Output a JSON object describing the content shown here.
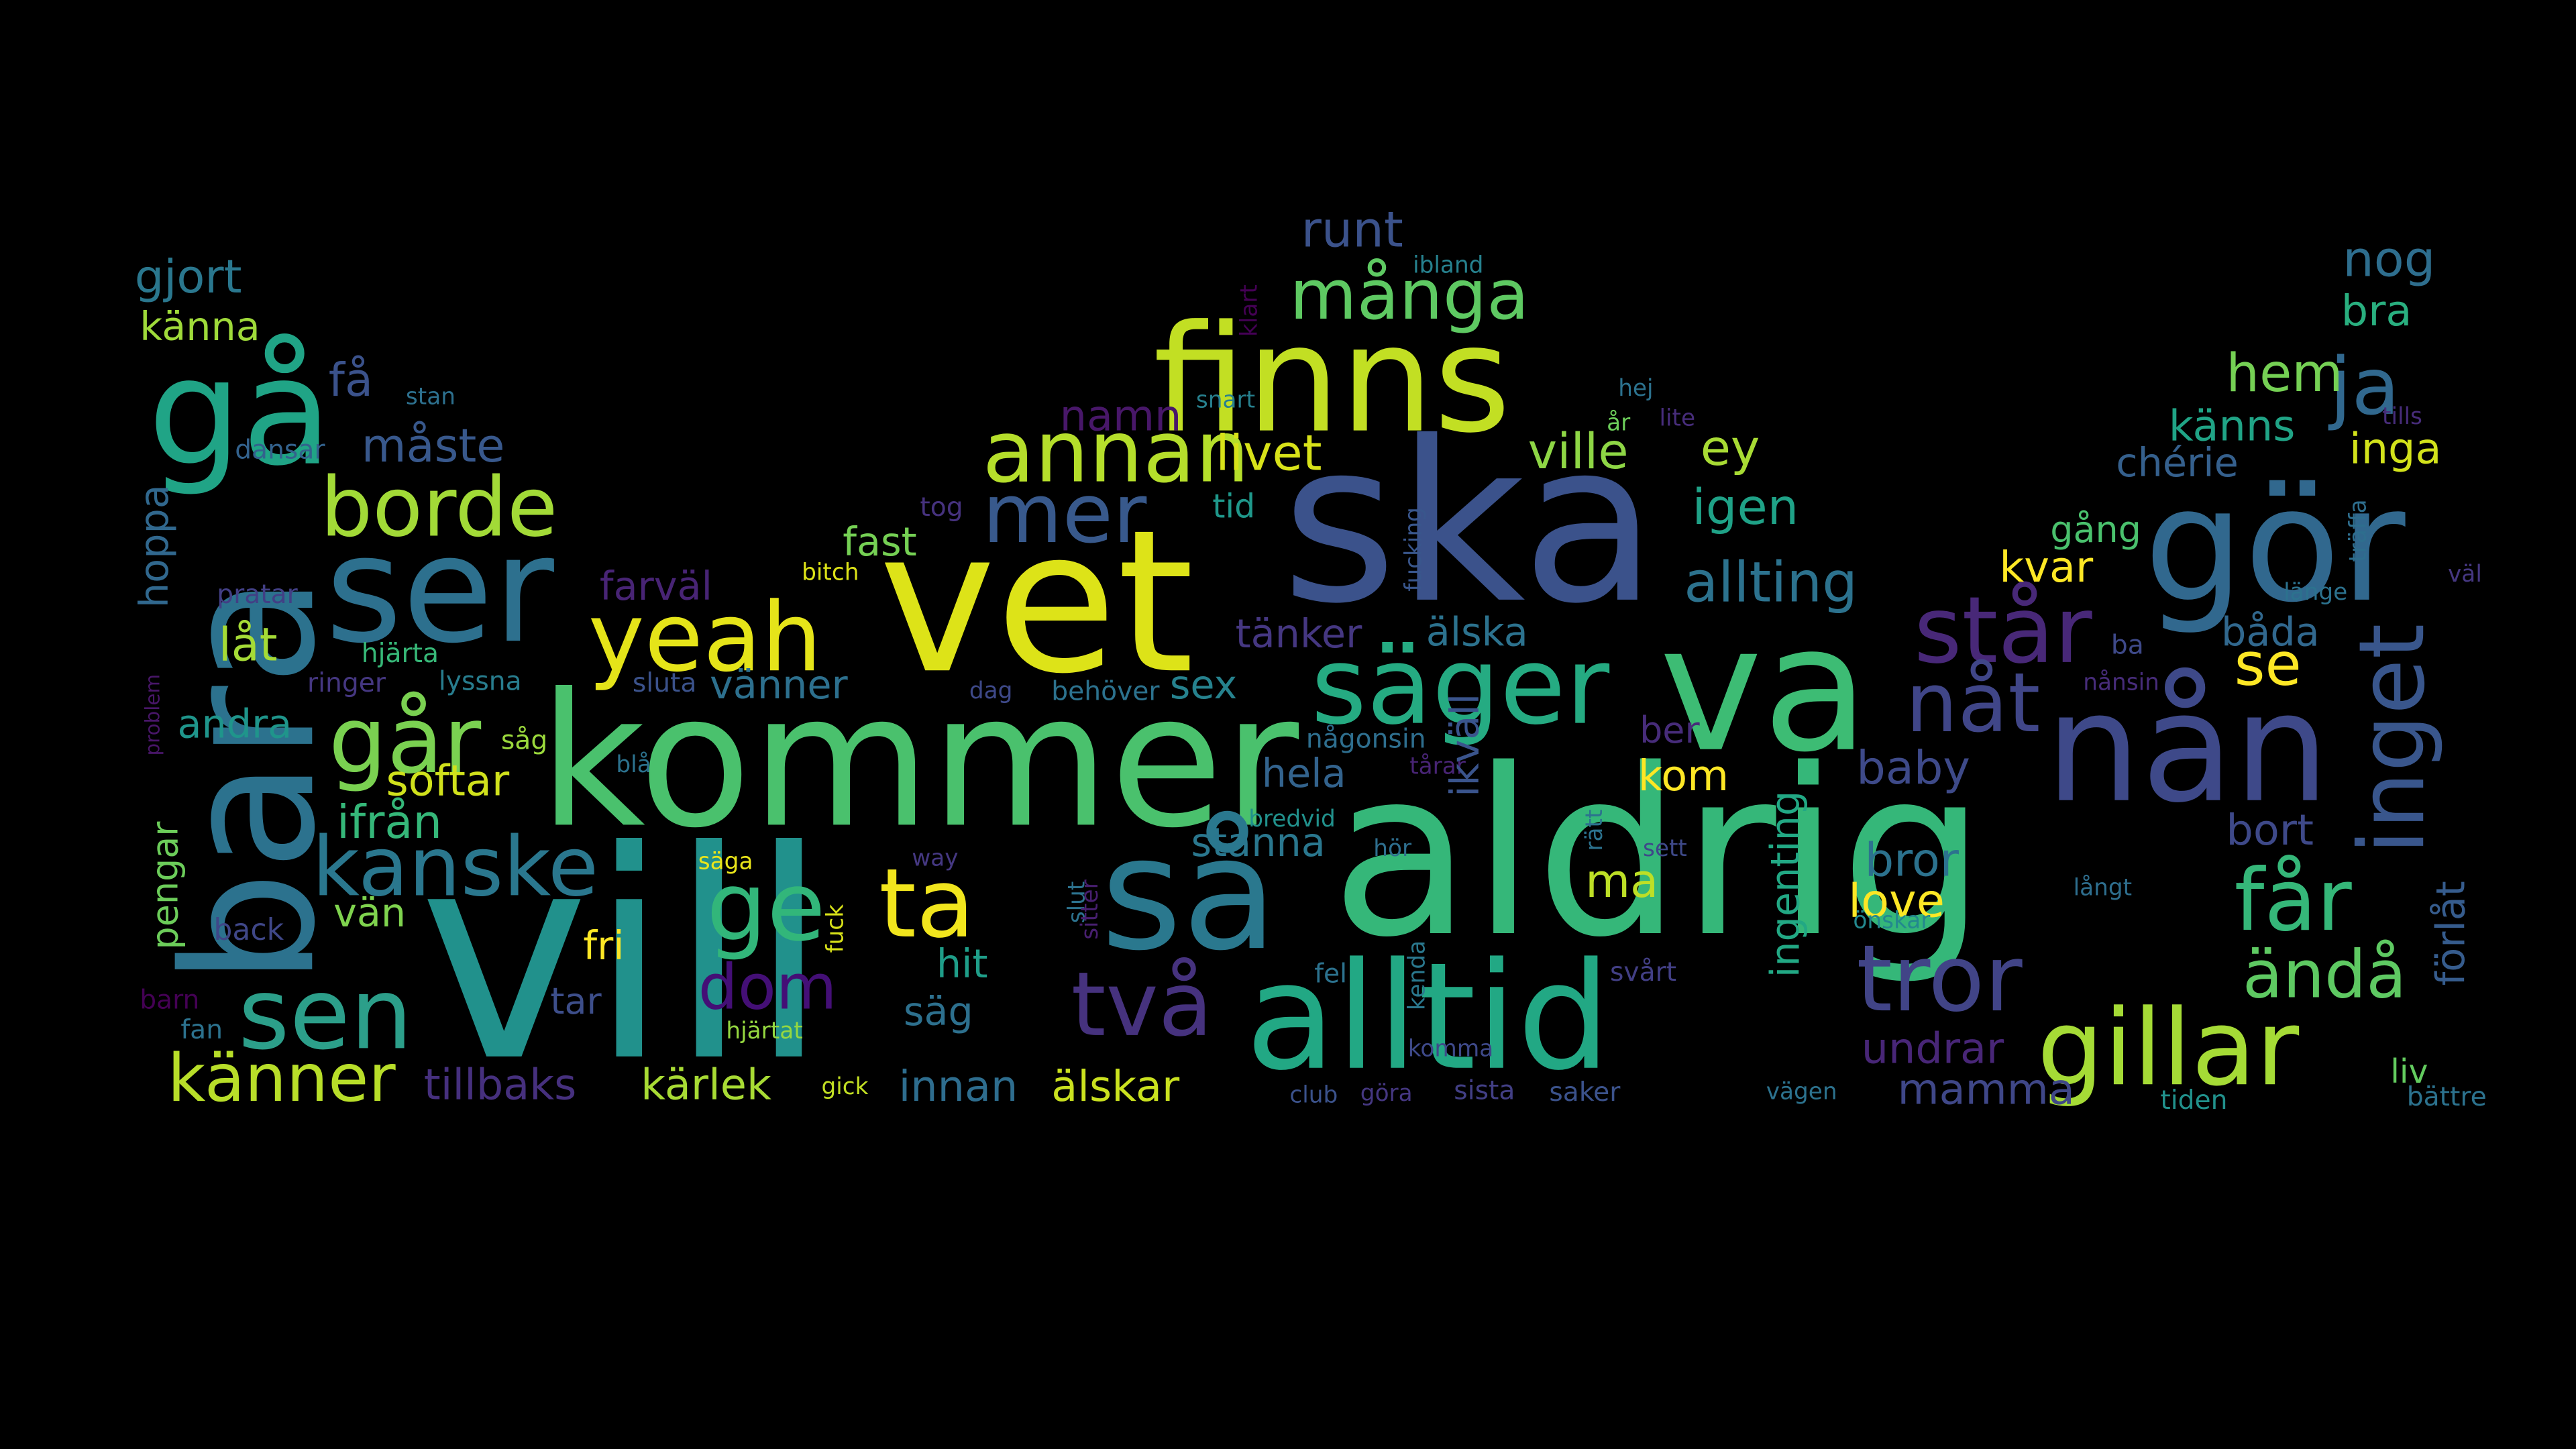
{
  "words": [
    {
      "t": "vill",
      "c": "#21918c"
    },
    {
      "t": "aldrig",
      "c": "#35b779"
    },
    {
      "t": "ska",
      "c": "#3b528b"
    },
    {
      "t": "vet",
      "c": "#dde318"
    },
    {
      "t": "kommer",
      "c": "#4ac16d"
    },
    {
      "t": "bara",
      "c": "#2c728e"
    },
    {
      "t": "va",
      "c": "#3dbc74"
    },
    {
      "t": "så",
      "c": "#2a788e"
    },
    {
      "t": "alltid",
      "c": "#22a884"
    },
    {
      "t": "nån",
      "c": "#3e4989"
    },
    {
      "t": "gör",
      "c": "#31688e"
    },
    {
      "t": "finns",
      "c": "#c2df23"
    },
    {
      "t": "ser",
      "c": "#2d708e"
    },
    {
      "t": "gå",
      "c": "#20a486"
    },
    {
      "t": "säger",
      "c": "#25ab82"
    },
    {
      "t": "yeah",
      "c": "#e5e419"
    },
    {
      "t": "gillar",
      "c": "#a5db36"
    },
    {
      "t": "sen",
      "c": "#2c9f8a"
    },
    {
      "t": "tror",
      "c": "#414487"
    },
    {
      "t": "annan",
      "c": "#b5de2b"
    },
    {
      "t": "borde",
      "c": "#a2da37"
    },
    {
      "t": "ta",
      "c": "#f1e51d"
    },
    {
      "t": "ge",
      "c": "#32b67a"
    },
    {
      "t": "kanske",
      "c": "#2a778e"
    },
    {
      "t": "går",
      "c": "#7ad151"
    },
    {
      "t": "två",
      "c": "#46327e"
    },
    {
      "t": "får",
      "c": "#35b779"
    },
    {
      "t": "inget",
      "c": "#39568c"
    },
    {
      "t": "står",
      "c": "#482878"
    },
    {
      "t": "mer",
      "c": "#38598c"
    },
    {
      "t": "många",
      "c": "#5ec962"
    },
    {
      "t": "ja",
      "c": "#31688e"
    },
    {
      "t": "nåt",
      "c": "#404688"
    },
    {
      "t": "dom",
      "c": "#440f76"
    },
    {
      "t": "känner",
      "c": "#b8de29"
    },
    {
      "t": "ändå",
      "c": "#5ec962"
    },
    {
      "t": "allting",
      "c": "#2c728e"
    },
    {
      "t": "runt",
      "c": "#3b528b"
    },
    {
      "t": "nog",
      "c": "#2e6e8e"
    },
    {
      "t": "gjort",
      "c": "#2a778e"
    },
    {
      "t": "hem",
      "c": "#75d054"
    },
    {
      "t": "se",
      "c": "#fde725"
    },
    {
      "t": "livet",
      "c": "#d8e219"
    },
    {
      "t": "ville",
      "c": "#8ed645"
    },
    {
      "t": "igen",
      "c": "#1fa287"
    },
    {
      "t": "ey",
      "c": "#a8db34"
    },
    {
      "t": "känns",
      "c": "#20a486"
    },
    {
      "t": "bra",
      "c": "#29af7f"
    },
    {
      "t": "inga",
      "c": "#d2e21b"
    },
    {
      "t": "chérie",
      "c": "#35608d"
    },
    {
      "t": "måste",
      "c": "#38588c"
    },
    {
      "t": "namn",
      "c": "#481769"
    },
    {
      "t": "få",
      "c": "#3b528b"
    },
    {
      "t": "känna",
      "c": "#9fda3a"
    },
    {
      "t": "stan",
      "c": "#2d708e"
    },
    {
      "t": "dansar",
      "c": "#33628d"
    },
    {
      "t": "hoppa",
      "c": "#31688e"
    },
    {
      "t": "pratar",
      "c": "#423f85"
    },
    {
      "t": "farväl",
      "c": "#482475"
    },
    {
      "t": "låt",
      "c": "#a5db36"
    },
    {
      "t": "hjärta",
      "c": "#37b878"
    },
    {
      "t": "ringer",
      "c": "#453781"
    },
    {
      "t": "lyssna",
      "c": "#287d8e"
    },
    {
      "t": "problem",
      "c": "#481668"
    },
    {
      "t": "andra",
      "c": "#1f958b"
    },
    {
      "t": "softar",
      "c": "#d0e11c"
    },
    {
      "t": "ifrån",
      "c": "#35b779"
    },
    {
      "t": "pengar",
      "c": "#6ccd5a"
    },
    {
      "t": "back",
      "c": "#3f4788"
    },
    {
      "t": "vän",
      "c": "#7fd34e"
    },
    {
      "t": "fri",
      "c": "#fde725"
    },
    {
      "t": "tar",
      "c": "#3d4e8a"
    },
    {
      "t": "barn",
      "c": "#440154"
    },
    {
      "t": "fan",
      "c": "#2c728e"
    },
    {
      "t": "tillbaks",
      "c": "#46307e"
    },
    {
      "t": "kärlek",
      "c": "#a8db34"
    },
    {
      "t": "innan",
      "c": "#2e6d8e"
    },
    {
      "t": "älskar",
      "c": "#cae11f"
    },
    {
      "t": "gick",
      "c": "#c2df23"
    },
    {
      "t": "hjärtat",
      "c": "#95d840"
    },
    {
      "t": "säg",
      "c": "#2d708e"
    },
    {
      "t": "hit",
      "c": "#1f9e89"
    },
    {
      "t": "way",
      "c": "#453882"
    },
    {
      "t": "fuck",
      "c": "#d8e219"
    },
    {
      "t": "säga",
      "c": "#eae51a"
    },
    {
      "t": "fast",
      "c": "#75d054"
    },
    {
      "t": "bitch",
      "c": "#dde318"
    },
    {
      "t": "tog",
      "c": "#46327e"
    },
    {
      "t": "klart",
      "c": "#440154"
    },
    {
      "t": "snart",
      "c": "#27808e"
    },
    {
      "t": "tid",
      "c": "#1f988b"
    },
    {
      "t": "vänner",
      "c": "#2d708e"
    },
    {
      "t": "sex",
      "c": "#26828e"
    },
    {
      "t": "behöver",
      "c": "#2c728e"
    },
    {
      "t": "dag",
      "c": "#3e4989"
    },
    {
      "t": "sluta",
      "c": "#3b528b"
    },
    {
      "t": "blå",
      "c": "#2c728e"
    },
    {
      "t": "såg",
      "c": "#9bd93c"
    },
    {
      "t": "tänker",
      "c": "#453781"
    },
    {
      "t": "älska",
      "c": "#2c728e"
    },
    {
      "t": "hela",
      "c": "#33638d"
    },
    {
      "t": "stanna",
      "c": "#2a778e"
    },
    {
      "t": "slut",
      "c": "#2c728e"
    },
    {
      "t": "sitter",
      "c": "#481f70"
    },
    {
      "t": "fel",
      "c": "#2c728e"
    },
    {
      "t": "club",
      "c": "#3b528b"
    },
    {
      "t": "göra",
      "c": "#453781"
    },
    {
      "t": "ibland",
      "c": "#26818e"
    },
    {
      "t": "fucking",
      "c": "#39568c"
    },
    {
      "t": "någonsin",
      "c": "#2e6e8e"
    },
    {
      "t": "tårar",
      "c": "#482475"
    },
    {
      "t": "bredvid",
      "c": "#21918c"
    },
    {
      "t": "ikväll",
      "c": "#3a548c"
    },
    {
      "t": "hör",
      "c": "#2e6e8e"
    },
    {
      "t": "kenda",
      "c": "#2a788e"
    },
    {
      "t": "komma",
      "c": "#3e4989"
    },
    {
      "t": "sista",
      "c": "#423f85"
    },
    {
      "t": "saker",
      "c": "#3b528b"
    },
    {
      "t": "hej",
      "c": "#2c728e"
    },
    {
      "t": "år",
      "c": "#6ccd5a"
    },
    {
      "t": "lite",
      "c": "#472d7b"
    },
    {
      "t": "ber",
      "c": "#472c7a"
    },
    {
      "t": "kom",
      "c": "#fde725"
    },
    {
      "t": "ingenting",
      "c": "#22a884"
    },
    {
      "t": "rätt",
      "c": "#2c728e"
    },
    {
      "t": "sett",
      "c": "#3e4989"
    },
    {
      "t": "ma",
      "c": "#bddf26"
    },
    {
      "t": "svårt",
      "c": "#423f85"
    },
    {
      "t": "baby",
      "c": "#3e4a89"
    },
    {
      "t": "bror",
      "c": "#2c728e"
    },
    {
      "t": "love",
      "c": "#fde725"
    },
    {
      "t": "undrar",
      "c": "#482677"
    },
    {
      "t": "mamma",
      "c": "#3f4788"
    },
    {
      "t": "önskar",
      "c": "#23888e"
    },
    {
      "t": "vägen",
      "c": "#2c728e"
    },
    {
      "t": "bort",
      "c": "#3e4989"
    },
    {
      "t": "långt",
      "c": "#2e6e8e"
    },
    {
      "t": "ba",
      "c": "#3e4989"
    },
    {
      "t": "nånsin",
      "c": "#472c7a"
    },
    {
      "t": "båda",
      "c": "#31688e"
    },
    {
      "t": "kvar",
      "c": "#fde725"
    },
    {
      "t": "gång",
      "c": "#4ac16d"
    },
    {
      "t": "länge",
      "c": "#2c728e"
    },
    {
      "t": "väl",
      "c": "#453781"
    },
    {
      "t": "träffa",
      "c": "#2e6e8e"
    },
    {
      "t": "tills",
      "c": "#472c7a"
    },
    {
      "t": "förlåt",
      "c": "#365c8d"
    },
    {
      "t": "liv",
      "c": "#63cb5f"
    },
    {
      "t": "bättre",
      "c": "#2c728e"
    },
    {
      "t": "tiden",
      "c": "#21918c"
    }
  ]
}
